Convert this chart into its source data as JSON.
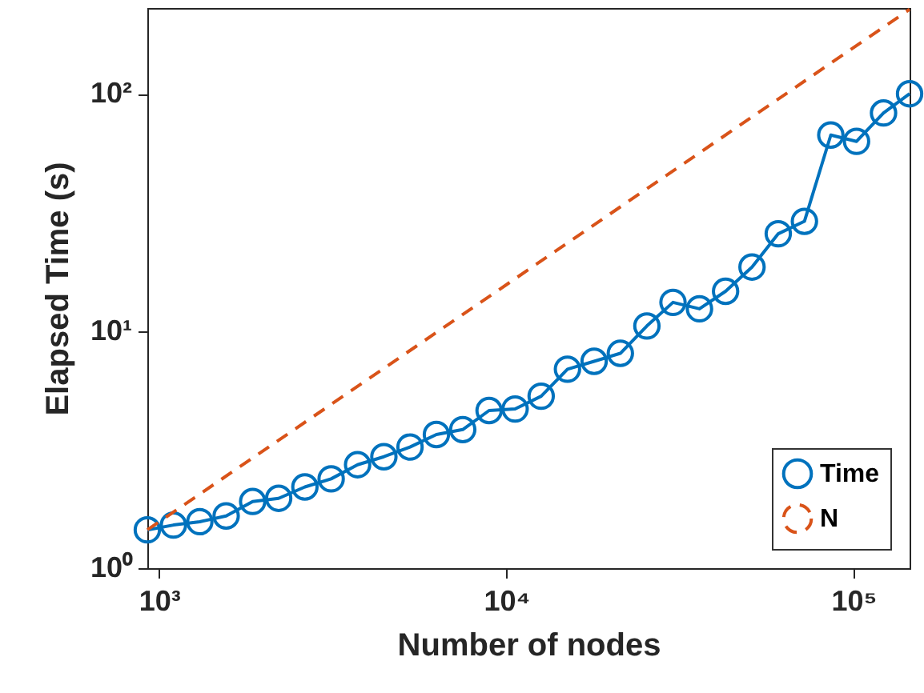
{
  "chart_data": {
    "type": "line",
    "xlabel": "Number of nodes",
    "ylabel": "Elapsed Time (s)",
    "log": "xy",
    "xlim": [
      925,
      145000
    ],
    "ylim": [
      1,
      230
    ],
    "xticks": [
      {
        "value": 1000,
        "label": "10³"
      },
      {
        "value": 10000,
        "label": "10⁴"
      },
      {
        "value": 100000,
        "label": "10⁵"
      }
    ],
    "yticks": [
      {
        "value": 1,
        "label": "10⁰"
      },
      {
        "value": 10,
        "label": "10¹"
      },
      {
        "value": 100,
        "label": "10²"
      }
    ],
    "grid": false,
    "legend": "bottom right",
    "x": [
      925,
      1100,
      1310,
      1560,
      1860,
      2210,
      2630,
      3130,
      3730,
      4440,
      5280,
      6290,
      7490,
      8920,
      10600,
      12600,
      15000,
      17900,
      21300,
      25400,
      30200,
      36000,
      42800,
      51000,
      60700,
      72200,
      86000,
      102000,
      122000,
      145000
    ],
    "series": [
      {
        "name": "Time",
        "color": "#0072bd",
        "marker": "circle",
        "line_style": "solid",
        "values": [
          1.45,
          1.52,
          1.57,
          1.66,
          1.91,
          1.97,
          2.2,
          2.38,
          2.73,
          2.95,
          3.24,
          3.66,
          3.84,
          4.62,
          4.69,
          5.31,
          6.9,
          7.45,
          8.05,
          10.5,
          13.2,
          12.4,
          14.7,
          18.6,
          25.7,
          29,
          67,
          63,
          83,
          100
        ]
      },
      {
        "name": "N",
        "color": "#d95319",
        "marker": "none",
        "line_style": "dashed",
        "type": "line",
        "x": [
          925,
          145000
        ],
        "values": [
          1.45,
          227
        ]
      }
    ]
  }
}
